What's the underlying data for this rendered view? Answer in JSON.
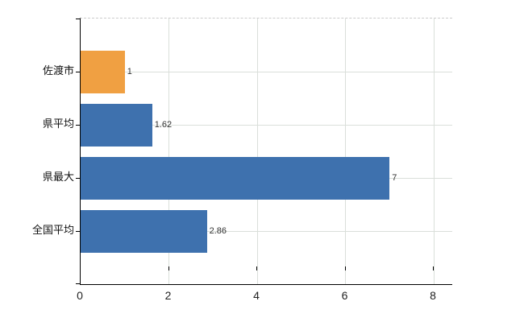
{
  "chart_data": {
    "type": "bar",
    "orientation": "horizontal",
    "title": "",
    "xlabel": "",
    "ylabel": "",
    "categories": [
      "佐渡市",
      "県平均",
      "県最大",
      "全国平均"
    ],
    "values": [
      1,
      1.62,
      7,
      2.86
    ],
    "value_labels": [
      "1",
      "1.62",
      "7",
      "2.86"
    ],
    "bar_colors": [
      "#f0a042",
      "#3e71ae",
      "#3e71ae",
      "#3e71ae"
    ],
    "xticks": [
      0,
      2,
      4,
      6,
      8
    ],
    "xtick_labels": [
      "0",
      "2",
      "4",
      "6",
      "8"
    ],
    "xlim": [
      0,
      8.42
    ],
    "grid": true,
    "legend": "none"
  },
  "colors": {
    "background": "#ffffff",
    "axis": "#000000",
    "gridline": "#dadfda",
    "plot_top_border": "#cccccc",
    "highlight_bar": "#f0a042",
    "default_bar": "#3e71ae",
    "label_text": "#111111",
    "value_text": "#333333"
  }
}
